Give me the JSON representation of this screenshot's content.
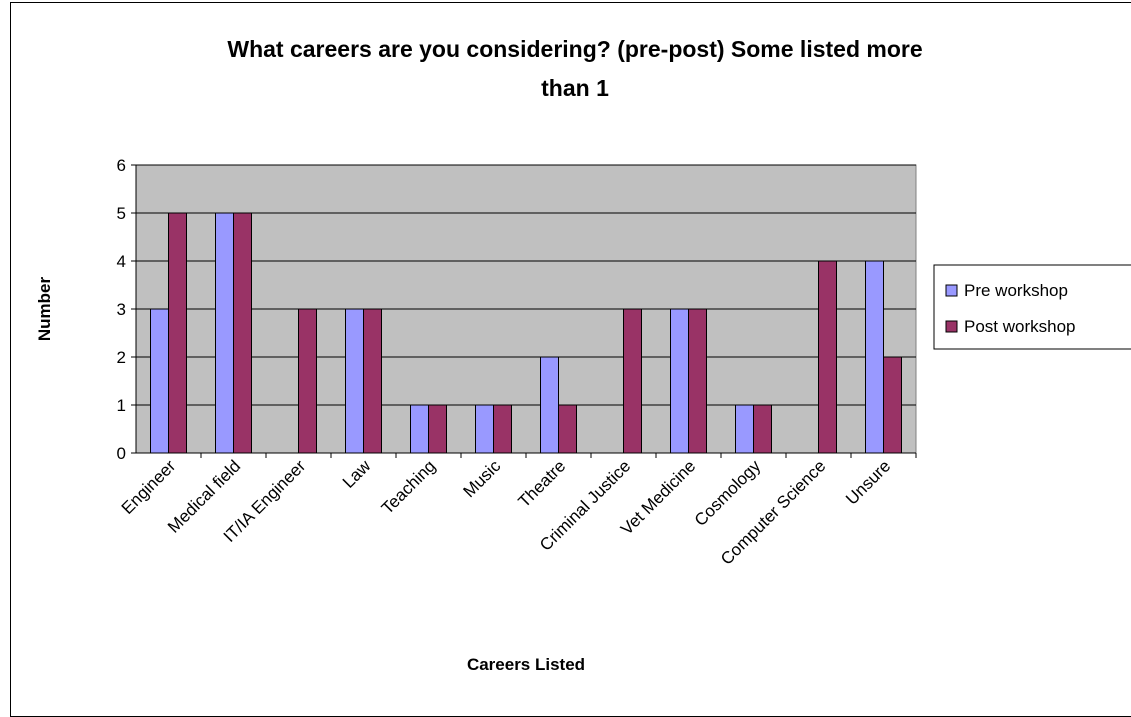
{
  "chart_data": {
    "type": "bar",
    "title_lines": [
      "What careers are you considering? (pre-post) Some listed more",
      "than 1"
    ],
    "xlabel": "Careers Listed",
    "ylabel": "Number",
    "ylim": [
      0,
      6
    ],
    "yticks": [
      "0",
      "1",
      "2",
      "3",
      "4",
      "5",
      "6"
    ],
    "grid": true,
    "legend_position": "right",
    "categories": [
      "Engineer",
      "Medical field",
      "IT/IA Engineer",
      "Law",
      "Teaching",
      "Music",
      "Theatre",
      "Criminal Justice",
      "Vet Medicine",
      "Cosmology",
      "Computer Science",
      "Unsure"
    ],
    "series": [
      {
        "name": "Pre workshop",
        "color": "#9999ff",
        "values": [
          3,
          5,
          0,
          3,
          1,
          1,
          2,
          0,
          3,
          1,
          0,
          4
        ]
      },
      {
        "name": "Post workshop",
        "color": "#993366",
        "values": [
          5,
          5,
          3,
          3,
          1,
          1,
          1,
          3,
          3,
          1,
          4,
          2
        ]
      }
    ],
    "plot_background": "#c0c0c0"
  }
}
